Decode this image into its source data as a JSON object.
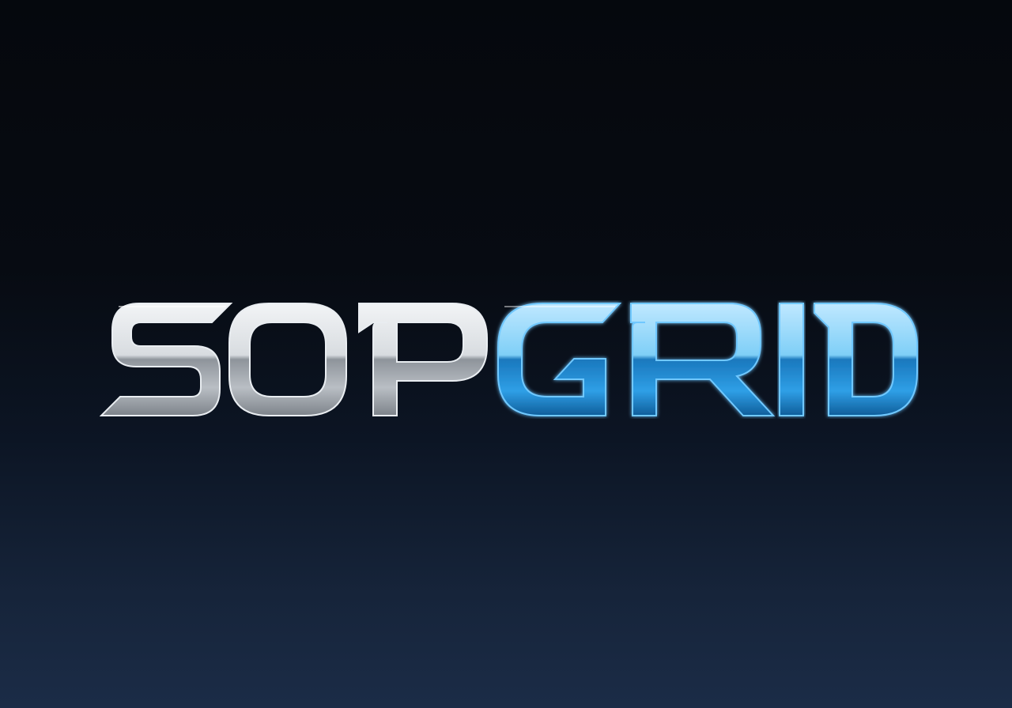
{
  "logo": {
    "text": "SOPGRID",
    "part_silver": "SOP",
    "part_blue": "GRID",
    "colors": {
      "background_top": "#05080d",
      "background_bottom": "#1b2c47",
      "silver_light": "#f2f4f6",
      "silver_mid": "#b9bec4",
      "silver_dark": "#7d838a",
      "blue_light": "#9fdcff",
      "blue_mid": "#2f9fe6",
      "blue_dark": "#0f5d9a"
    }
  }
}
